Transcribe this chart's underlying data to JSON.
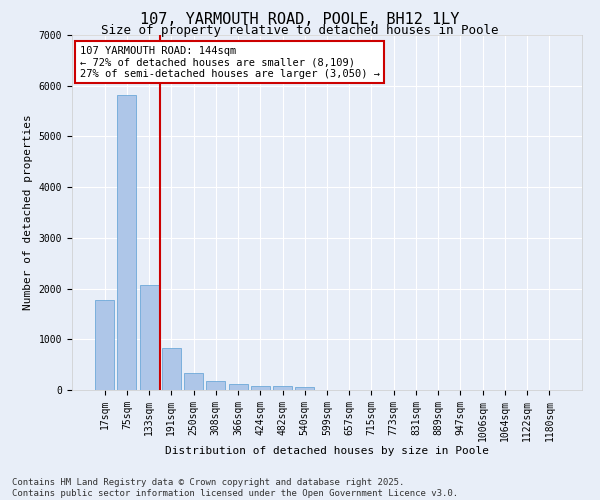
{
  "title": "107, YARMOUTH ROAD, POOLE, BH12 1LY",
  "subtitle": "Size of property relative to detached houses in Poole",
  "xlabel": "Distribution of detached houses by size in Poole",
  "ylabel": "Number of detached properties",
  "categories": [
    "17sqm",
    "75sqm",
    "133sqm",
    "191sqm",
    "250sqm",
    "308sqm",
    "366sqm",
    "424sqm",
    "482sqm",
    "540sqm",
    "599sqm",
    "657sqm",
    "715sqm",
    "773sqm",
    "831sqm",
    "889sqm",
    "947sqm",
    "1006sqm",
    "1064sqm",
    "1122sqm",
    "1180sqm"
  ],
  "values": [
    1780,
    5820,
    2080,
    820,
    340,
    175,
    110,
    80,
    70,
    50,
    0,
    0,
    0,
    0,
    0,
    0,
    0,
    0,
    0,
    0,
    0
  ],
  "bar_color": "#aec6e8",
  "bar_edge_color": "#5a9fd4",
  "background_color": "#e8eef8",
  "grid_color": "#ffffff",
  "vline_color": "#cc0000",
  "vline_pos": 2.5,
  "annotation_box_text": "107 YARMOUTH ROAD: 144sqm\n← 72% of detached houses are smaller (8,109)\n27% of semi-detached houses are larger (3,050) →",
  "footer_text": "Contains HM Land Registry data © Crown copyright and database right 2025.\nContains public sector information licensed under the Open Government Licence v3.0.",
  "ylim": [
    0,
    7000
  ],
  "yticks": [
    0,
    1000,
    2000,
    3000,
    4000,
    5000,
    6000,
    7000
  ],
  "title_fontsize": 11,
  "subtitle_fontsize": 9,
  "axis_label_fontsize": 8,
  "tick_fontsize": 7,
  "annotation_fontsize": 7.5,
  "footer_fontsize": 6.5
}
